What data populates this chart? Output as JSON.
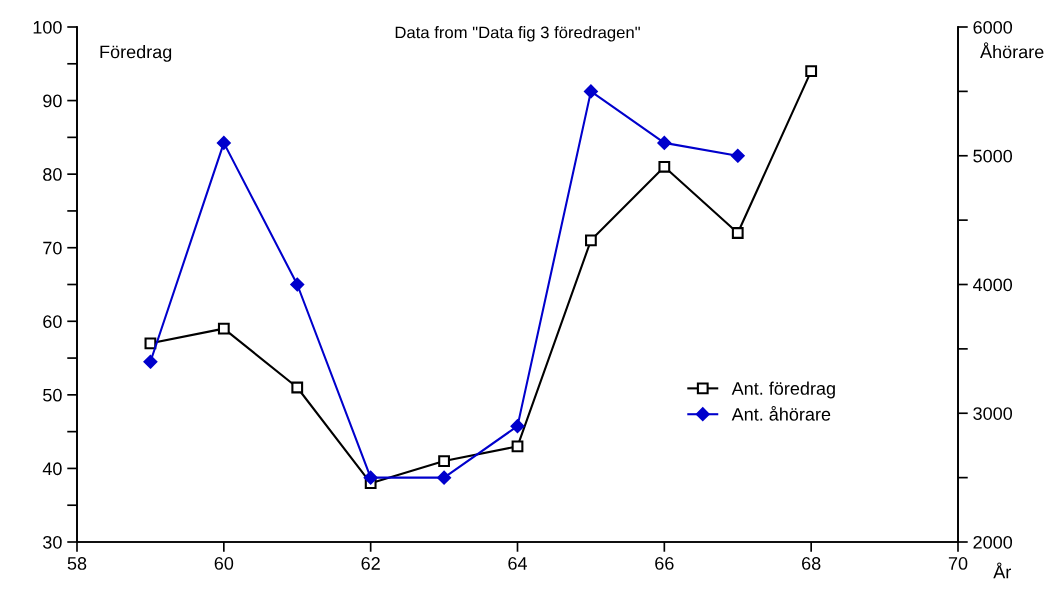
{
  "chart_data": {
    "type": "line",
    "title": "Data from \"Data fig 3 föredragen\"",
    "xlabel": "År",
    "ylabel": "Föredrag",
    "y2label": "Åhörare",
    "x": [
      59,
      60,
      61,
      62,
      63,
      64,
      65,
      66,
      67,
      68
    ],
    "series": [
      {
        "name": "Ant. föredrag",
        "color": "#000000",
        "marker": "square",
        "values": [
          57,
          59,
          51,
          38,
          41,
          43,
          71,
          81,
          72,
          94
        ]
      },
      {
        "name": "Ant. åhörare",
        "color": "#0000cc",
        "marker": "diamond",
        "axis": "y2",
        "values": [
          3400,
          5100,
          4000,
          2500,
          2500,
          2900,
          5500,
          5100,
          5000,
          null
        ]
      }
    ],
    "xlim": [
      58,
      70
    ],
    "xticks": [
      58,
      60,
      62,
      64,
      66,
      68,
      70
    ],
    "ylim": [
      30,
      100
    ],
    "yticks": [
      30,
      {
        "value": 35,
        "label": null
      },
      40,
      {
        "value": 45,
        "label": null
      },
      50,
      {
        "value": 55,
        "label": null
      },
      60,
      {
        "value": 65,
        "label": null
      },
      70,
      {
        "value": 75,
        "label": null
      },
      80,
      {
        "value": 85,
        "label": null
      },
      90,
      {
        "value": 95,
        "label": null
      },
      100
    ],
    "y2lim": [
      2000,
      6000
    ],
    "y2ticks": [
      2000,
      {
        "value": 2500,
        "label": null
      },
      3000,
      {
        "value": 3500,
        "label": null
      },
      4000,
      {
        "value": 4500,
        "label": null
      },
      5000,
      {
        "value": 5500,
        "label": null
      },
      6000
    ],
    "grid": false,
    "legend": "center right",
    "line_style": "solid"
  }
}
